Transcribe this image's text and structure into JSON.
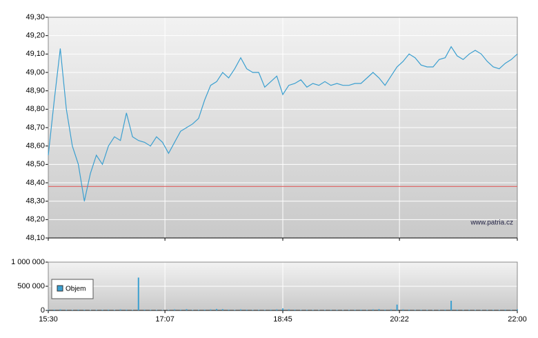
{
  "chart_data": [
    {
      "type": "line",
      "color": "#3a9fd0",
      "x": [
        "15:30",
        "15:35",
        "15:40",
        "15:45",
        "15:50",
        "15:55",
        "16:00",
        "16:05",
        "16:10",
        "16:15",
        "16:20",
        "16:25",
        "16:30",
        "16:35",
        "16:40",
        "16:45",
        "16:50",
        "16:55",
        "17:00",
        "17:05",
        "17:10",
        "17:15",
        "17:20",
        "17:25",
        "17:30",
        "17:35",
        "17:40",
        "17:45",
        "17:50",
        "17:55",
        "18:00",
        "18:05",
        "18:10",
        "18:15",
        "18:20",
        "18:25",
        "18:30",
        "18:35",
        "18:40",
        "18:45",
        "18:50",
        "18:55",
        "19:00",
        "19:05",
        "19:10",
        "19:15",
        "19:20",
        "19:25",
        "19:30",
        "19:35",
        "19:40",
        "19:45",
        "19:50",
        "19:55",
        "20:00",
        "20:05",
        "20:10",
        "20:15",
        "20:20",
        "20:25",
        "20:30",
        "20:35",
        "20:40",
        "20:45",
        "20:50",
        "20:55",
        "21:00",
        "21:05",
        "21:10",
        "21:15",
        "21:20",
        "21:25",
        "21:30",
        "21:35",
        "21:40",
        "21:45",
        "21:50",
        "21:55",
        "22:00"
      ],
      "values": [
        48.55,
        48.85,
        49.13,
        48.8,
        48.6,
        48.5,
        48.3,
        48.45,
        48.55,
        48.5,
        48.6,
        48.65,
        48.63,
        48.78,
        48.65,
        48.63,
        48.62,
        48.6,
        48.65,
        48.62,
        48.56,
        48.62,
        48.68,
        48.7,
        48.72,
        48.75,
        48.85,
        48.93,
        48.95,
        49.0,
        48.97,
        49.02,
        49.08,
        49.02,
        49.0,
        49.0,
        48.92,
        48.95,
        48.98,
        48.88,
        48.93,
        48.94,
        48.96,
        48.92,
        48.94,
        48.93,
        48.95,
        48.93,
        48.94,
        48.93,
        48.93,
        48.94,
        48.94,
        48.97,
        49.0,
        48.97,
        48.93,
        48.98,
        49.03,
        49.06,
        49.1,
        49.08,
        49.04,
        49.03,
        49.03,
        49.07,
        49.08,
        49.14,
        49.09,
        49.07,
        49.1,
        49.12,
        49.1,
        49.06,
        49.03,
        49.02,
        49.05,
        49.07,
        49.1
      ],
      "xlim": [
        "15:30",
        "22:00"
      ],
      "ylim": [
        48.1,
        49.3
      ],
      "yticks": [
        {
          "value": 48.1,
          "label": "48,10"
        },
        {
          "value": 48.2,
          "label": "48,20"
        },
        {
          "value": 48.3,
          "label": "48,30"
        },
        {
          "value": 48.4,
          "label": "48,40"
        },
        {
          "value": 48.5,
          "label": "48,50"
        },
        {
          "value": 48.6,
          "label": "48,60"
        },
        {
          "value": 48.7,
          "label": "48,70"
        },
        {
          "value": 48.8,
          "label": "48,80"
        },
        {
          "value": 48.9,
          "label": "48,90"
        },
        {
          "value": 49.0,
          "label": "49,00"
        },
        {
          "value": 49.1,
          "label": "49,10"
        },
        {
          "value": 49.2,
          "label": "49,20"
        },
        {
          "value": 49.3,
          "label": "49,30"
        }
      ],
      "reference_line": {
        "value": 48.38,
        "color": "#e06060"
      },
      "annotation": "www.patria.cz",
      "grid": true
    },
    {
      "type": "bar",
      "x": [
        "15:30",
        "15:35",
        "15:40",
        "15:45",
        "15:50",
        "15:55",
        "16:00",
        "16:05",
        "16:10",
        "16:15",
        "16:20",
        "16:25",
        "16:30",
        "16:35",
        "16:40",
        "16:45",
        "16:50",
        "16:55",
        "17:00",
        "17:05",
        "17:10",
        "17:15",
        "17:20",
        "17:25",
        "17:30",
        "17:35",
        "17:40",
        "17:45",
        "17:50",
        "17:55",
        "18:00",
        "18:05",
        "18:10",
        "18:15",
        "18:20",
        "18:25",
        "18:30",
        "18:35",
        "18:40",
        "18:45",
        "18:50",
        "18:55",
        "19:00",
        "19:05",
        "19:10",
        "19:15",
        "19:20",
        "19:25",
        "19:30",
        "19:35",
        "19:40",
        "19:45",
        "19:50",
        "19:55",
        "20:00",
        "20:05",
        "20:10",
        "20:15",
        "20:20",
        "20:25",
        "20:30",
        "20:35",
        "20:40",
        "20:45",
        "20:50",
        "20:55",
        "21:00",
        "21:05",
        "21:10",
        "21:15",
        "21:20",
        "21:25",
        "21:30",
        "21:35",
        "21:40",
        "21:45",
        "21:50",
        "21:55",
        "22:00"
      ],
      "series": [
        {
          "name": "Objem",
          "color": "#3a9fd0",
          "values": [
            10000,
            15000,
            20000,
            12000,
            10000,
            15000,
            12000,
            8000,
            10000,
            12000,
            15000,
            10000,
            20000,
            15000,
            10000,
            680000,
            15000,
            12000,
            10000,
            8000,
            10000,
            20000,
            15000,
            25000,
            10000,
            12000,
            15000,
            20000,
            30000,
            25000,
            15000,
            10000,
            20000,
            15000,
            10000,
            12000,
            10000,
            15000,
            20000,
            40000,
            20000,
            15000,
            10000,
            12000,
            10000,
            8000,
            10000,
            12000,
            10000,
            8000,
            10000,
            12000,
            15000,
            10000,
            20000,
            25000,
            15000,
            20000,
            120000,
            20000,
            15000,
            10000,
            12000,
            10000,
            8000,
            10000,
            15000,
            200000,
            15000,
            10000,
            12000,
            10000,
            8000,
            10000,
            12000,
            10000,
            15000,
            10000,
            20000
          ]
        }
      ],
      "xlim": [
        "15:30",
        "22:00"
      ],
      "xticks": [
        "15:30",
        "17:07",
        "18:45",
        "20:22",
        "22:00"
      ],
      "ylim": [
        0,
        1000000
      ],
      "yticks": [
        0,
        {
          "value": 500000,
          "label": "500 000"
        },
        {
          "value": 1000000,
          "label": "1 000 000"
        }
      ],
      "grid": true
    }
  ]
}
